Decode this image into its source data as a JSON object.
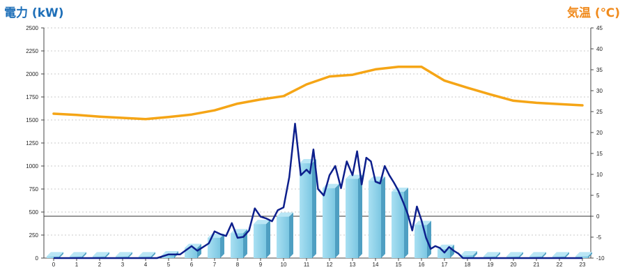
{
  "chart_data": {
    "type": "bar",
    "title": "",
    "y_left_label": "電力 (kW)",
    "y_right_label": "気温 (℃)",
    "ylim_left": [
      0,
      2500
    ],
    "yticks_left": [
      0,
      250,
      500,
      750,
      1000,
      1250,
      1500,
      1750,
      2000,
      2250,
      2500
    ],
    "ylim_right": [
      -10,
      45
    ],
    "yticks_right": [
      -10,
      -5,
      0,
      5,
      10,
      15,
      20,
      25,
      30,
      35,
      40,
      45
    ],
    "categories": [
      "0",
      "1",
      "2",
      "3",
      "4",
      "5",
      "6",
      "7",
      "8",
      "9",
      "10",
      "11",
      "12",
      "13",
      "14",
      "15",
      "16",
      "17",
      "18",
      "19",
      "20",
      "21",
      "22",
      "23"
    ],
    "grid": "horizontal-dashed",
    "colors": {
      "bars": "#7ecbe6",
      "power_line": "#0d1f8c",
      "temp_line": "#f5a516",
      "left_axis_title": "#1e6fb8",
      "right_axis_title": "#f08a1c"
    },
    "series": [
      {
        "type": "bar",
        "axis": "left",
        "values": [
          20,
          20,
          20,
          20,
          20,
          30,
          110,
          220,
          270,
          370,
          450,
          1030,
          760,
          860,
          840,
          720,
          360,
          100,
          30,
          20,
          20,
          20,
          20,
          20
        ]
      },
      {
        "type": "line",
        "axis": "left",
        "x": [
          0,
          0.5,
          1,
          1.5,
          2,
          2.5,
          3,
          3.5,
          4,
          4.5,
          5,
          5.5,
          6,
          6.25,
          6.5,
          6.75,
          7,
          7.25,
          7.5,
          7.75,
          8,
          8.25,
          8.5,
          8.75,
          9,
          9.25,
          9.5,
          9.75,
          10,
          10.25,
          10.5,
          10.75,
          11,
          11.15,
          11.3,
          11.5,
          11.75,
          12,
          12.25,
          12.5,
          12.75,
          13,
          13.2,
          13.4,
          13.6,
          13.8,
          14,
          14.2,
          14.4,
          14.6,
          14.8,
          15,
          15.2,
          15.4,
          15.6,
          15.8,
          16,
          16.2,
          16.4,
          16.6,
          16.8,
          17,
          17.2,
          17.4,
          17.6,
          17.8,
          18,
          18.5,
          19,
          19.5,
          20,
          21,
          22,
          23
        ],
        "values": [
          0,
          0,
          0,
          0,
          0,
          0,
          0,
          0,
          0,
          0,
          40,
          40,
          130,
          80,
          120,
          160,
          290,
          260,
          240,
          380,
          220,
          230,
          300,
          540,
          450,
          430,
          400,
          520,
          550,
          880,
          1460,
          900,
          960,
          920,
          1180,
          750,
          680,
          900,
          1000,
          760,
          1050,
          900,
          1160,
          800,
          1090,
          1050,
          830,
          810,
          1000,
          900,
          820,
          730,
          610,
          480,
          300,
          560,
          410,
          220,
          100,
          130,
          110,
          60,
          120,
          80,
          50,
          0,
          0,
          0,
          0,
          0,
          0,
          0,
          0,
          0
        ]
      },
      {
        "type": "line",
        "axis": "right",
        "values": [
          24.5,
          24.2,
          23.8,
          23.5,
          23.2,
          23.7,
          24.3,
          25.3,
          26.9,
          27.9,
          28.7,
          31.5,
          33.4,
          33.8,
          35.1,
          35.7,
          35.7,
          32.4,
          30.7,
          29.1,
          27.6,
          27.1,
          26.8,
          26.5
        ]
      }
    ]
  }
}
